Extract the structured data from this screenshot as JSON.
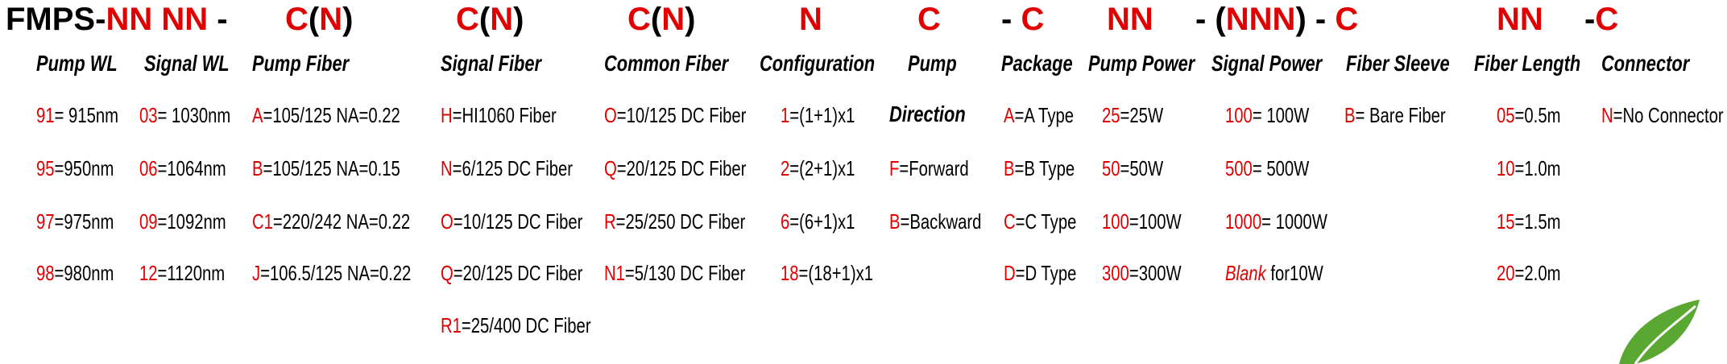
{
  "code_line": [
    {
      "parts": [
        {
          "text": "FMPS-",
          "color": "#000000"
        },
        {
          "text": "NN NN",
          "color": "#e00000"
        },
        {
          "text": " -",
          "color": "#000000"
        }
      ]
    },
    {
      "parts": [
        {
          "text": "C",
          "color": "#e00000"
        },
        {
          "text": "(",
          "color": "#000000"
        },
        {
          "text": "N",
          "color": "#e00000"
        },
        {
          "text": ")",
          "color": "#000000"
        }
      ]
    },
    {
      "parts": [
        {
          "text": "C",
          "color": "#e00000"
        },
        {
          "text": "(",
          "color": "#000000"
        },
        {
          "text": "N",
          "color": "#e00000"
        },
        {
          "text": ")",
          "color": "#000000"
        }
      ]
    },
    {
      "parts": [
        {
          "text": "C",
          "color": "#e00000"
        },
        {
          "text": "(",
          "color": "#000000"
        },
        {
          "text": "N",
          "color": "#e00000"
        },
        {
          "text": ")",
          "color": "#000000"
        }
      ]
    },
    {
      "parts": [
        {
          "text": "N",
          "color": "#e00000"
        }
      ]
    },
    {
      "parts": [
        {
          "text": "C",
          "color": "#e00000"
        }
      ]
    },
    {
      "parts": [
        {
          "text": "- ",
          "color": "#000000"
        },
        {
          "text": "C",
          "color": "#e00000"
        }
      ]
    },
    {
      "parts": [
        {
          "text": "NN",
          "color": "#e00000"
        }
      ]
    },
    {
      "parts": [
        {
          "text": "- (",
          "color": "#000000"
        },
        {
          "text": "NNN",
          "color": "#e00000"
        },
        {
          "text": ") - ",
          "color": "#000000"
        },
        {
          "text": "C",
          "color": "#e00000"
        }
      ]
    },
    {
      "parts": [
        {
          "text": "NN",
          "color": "#e00000"
        }
      ]
    },
    {
      "parts": [
        {
          "text": "-",
          "color": "#000000"
        },
        {
          "text": "C",
          "color": "#e00000"
        }
      ]
    }
  ],
  "columns": [
    {
      "header": "Pump WL",
      "entries": [
        {
          "code": "91",
          "text": "= 915nm"
        },
        {
          "code": "95",
          "text": "=950nm"
        },
        {
          "code": "97",
          "text": "=975nm"
        },
        {
          "code": "98",
          "text": "=980nm"
        }
      ]
    },
    {
      "header": "Signal WL",
      "entries": [
        {
          "code": "03",
          "text": "= 1030nm"
        },
        {
          "code": "06",
          "text": "=1064nm"
        },
        {
          "code": "09",
          "text": "=1092nm"
        },
        {
          "code": "12",
          "text": "=1120nm"
        }
      ]
    },
    {
      "header": "Pump Fiber",
      "entries": [
        {
          "code": "A",
          "text": "=105/125 NA=0.22"
        },
        {
          "code": "B",
          "text": "=105/125 NA=0.15"
        },
        {
          "code": "C1",
          "text": "=220/242 NA=0.22"
        },
        {
          "code": "J",
          "text": "=106.5/125 NA=0.22"
        }
      ]
    },
    {
      "header": "Signal Fiber",
      "entries": [
        {
          "code": "H",
          "text": "=HI1060 Fiber"
        },
        {
          "code": "N",
          "text": "=6/125 DC Fiber"
        },
        {
          "code": "O",
          "text": "=10/125 DC Fiber"
        },
        {
          "code": "Q",
          "text": "=20/125 DC Fiber"
        },
        {
          "code": "R1",
          "text": "=25/400 DC Fiber"
        }
      ]
    },
    {
      "header": "Common Fiber",
      "entries": [
        {
          "code": "O",
          "text": "=10/125 DC Fiber"
        },
        {
          "code": "Q",
          "text": "=20/125 DC Fiber"
        },
        {
          "code": "R",
          "text": "=25/250 DC Fiber"
        },
        {
          "code": "N1",
          "text": "=5/130 DC Fiber"
        }
      ]
    },
    {
      "header": "Configuration",
      "entries": [
        {
          "code": "1",
          "text": "=(1+1)x1"
        },
        {
          "code": "2",
          "text": "=(2+1)x1"
        },
        {
          "code": "6",
          "text": "=(6+1)x1"
        },
        {
          "code": "18",
          "text": "=(18+1)x1"
        }
      ]
    },
    {
      "header": "Pump",
      "subheader": "Direction",
      "entries": [
        {
          "code": "F",
          "text": "=Forward"
        },
        {
          "code": "B",
          "text": "=Backward"
        }
      ]
    },
    {
      "header": "Package",
      "entries": [
        {
          "code": "A",
          "text": "=A Type"
        },
        {
          "code": "B",
          "text": "=B Type"
        },
        {
          "code": "C",
          "text": "=C Type"
        },
        {
          "code": "D",
          "text": "=D Type"
        }
      ]
    },
    {
      "header": "Pump Power",
      "entries": [
        {
          "code": "25",
          "text": "=25W"
        },
        {
          "code": "50",
          "text": "=50W"
        },
        {
          "code": "100",
          "text": "=100W"
        },
        {
          "code": "300",
          "text": "=300W"
        }
      ]
    },
    {
      "header": "Signal Power",
      "entries": [
        {
          "code": "100",
          "text": "= 100W"
        },
        {
          "code": "500",
          "text": "= 500W"
        },
        {
          "code": "1000",
          "text": "= 1000W"
        },
        {
          "code": "Blank",
          "text": " for10W"
        }
      ]
    },
    {
      "header": "Fiber Sleeve",
      "entries": [
        {
          "code": "B",
          "text": "= Bare Fiber"
        }
      ]
    },
    {
      "header": "Fiber Length",
      "entries": [
        {
          "code": "05",
          "text": "=0.5m"
        },
        {
          "code": "10",
          "text": "=1.0m"
        },
        {
          "code": "15",
          "text": "=1.5m"
        },
        {
          "code": "20",
          "text": "=2.0m"
        }
      ]
    },
    {
      "header": "Connector",
      "entries": [
        {
          "code": "N",
          "text": "=No Connector"
        }
      ]
    }
  ]
}
